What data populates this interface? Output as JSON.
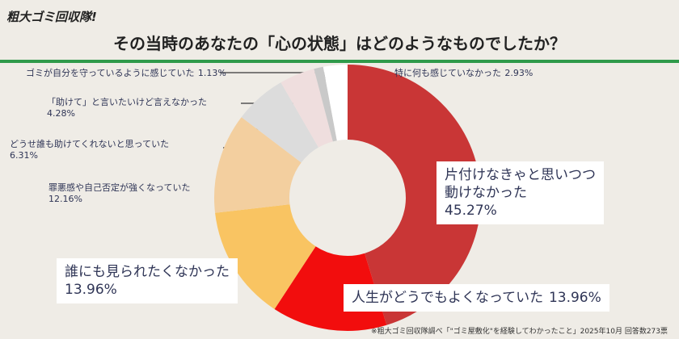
{
  "header": {
    "logo": "粗大ゴミ回収隊!"
  },
  "chart_data": {
    "type": "donut",
    "title": "その当時のあなたの「心の状態」はどのようなものでしたか？",
    "categories": [
      "片付けなきゃと思いつつ\n動けなかった",
      "人生がどうでもよくなっていた",
      "誰にも見られたくなかった",
      "罪悪感や自己否定が強くなっていた",
      "どうせ誰も助けてくれないと思っていた",
      "「助けて」と言いたいけど言えなかった",
      "ゴミが自分を守っているように感じていた",
      "特に何も感じていなかった"
    ],
    "values": [
      45.27,
      13.96,
      13.96,
      12.16,
      6.31,
      4.28,
      1.13,
      2.93
    ],
    "value_labels": [
      "45.27%",
      "13.96%",
      "13.96%",
      "12.16%",
      "6.31%",
      "4.28%",
      "1.13%",
      "2.93%"
    ],
    "colors": [
      "#c93636",
      "#f20d0d",
      "#f9c462",
      "#f3cf9f",
      "#dcdcdc",
      "#efdede",
      "#c9c9c9",
      "#ffffff"
    ],
    "note": "※粗大ゴミ回収隊調べ「\"ゴミ屋敷化\"を経験してわかったこと」2025年10月 回答数273票"
  }
}
